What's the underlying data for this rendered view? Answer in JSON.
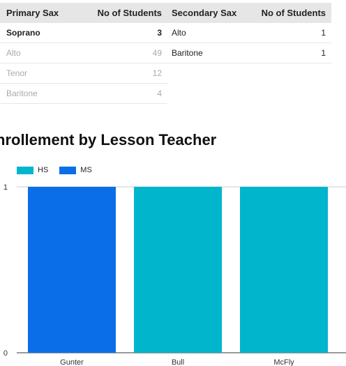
{
  "primary_table": {
    "headers": [
      "Primary Sax",
      "No of Students"
    ],
    "rows": [
      {
        "name": "Soprano",
        "count": "3",
        "style": "bold"
      },
      {
        "name": "Alto",
        "count": "49",
        "style": "dim"
      },
      {
        "name": "Tenor",
        "count": "12",
        "style": "dim"
      },
      {
        "name": "Baritone",
        "count": "4",
        "style": "dim"
      }
    ]
  },
  "secondary_table": {
    "headers": [
      "Secondary Sax",
      "No of Students"
    ],
    "rows": [
      {
        "name": "Alto",
        "count": "1",
        "style": "norm"
      },
      {
        "name": "Baritone",
        "count": "1",
        "style": "norm"
      }
    ]
  },
  "chart_title": "nrollement by Lesson Teacher",
  "chart_data": {
    "type": "bar",
    "categories": [
      "Gunter",
      "Bull",
      "McFly"
    ],
    "series": [
      {
        "name": "HS",
        "color": "#00b5cc",
        "values": [
          0,
          1,
          1
        ]
      },
      {
        "name": "MS",
        "color": "#0a6ee8",
        "values": [
          1,
          0,
          0
        ]
      }
    ],
    "ylim": [
      0,
      1
    ],
    "yticks": [
      "0",
      "1"
    ],
    "legend_position": "top-left"
  }
}
